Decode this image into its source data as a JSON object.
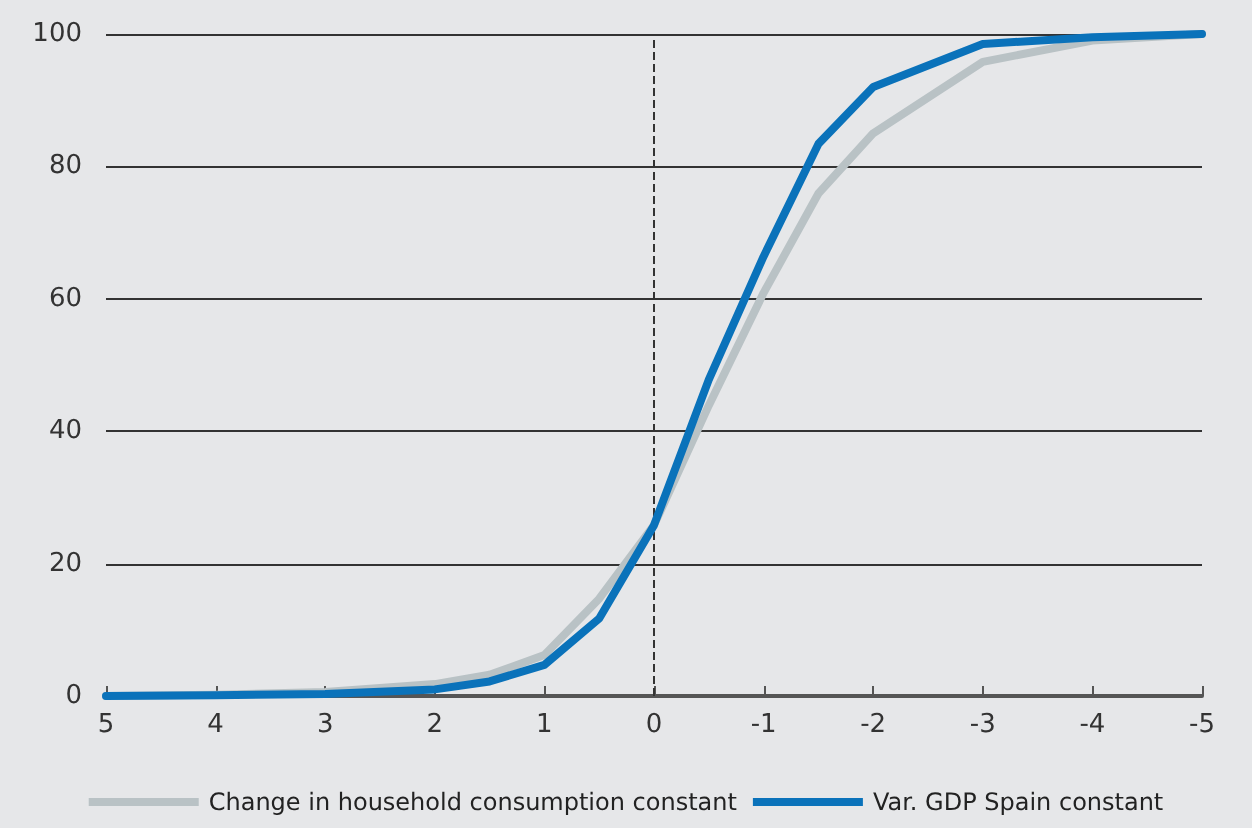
{
  "chart_data": {
    "type": "line",
    "x": [
      5,
      4,
      3,
      2,
      1.5,
      1,
      0.5,
      0,
      -0.5,
      -1,
      -1.5,
      -2,
      -3,
      -4,
      -5
    ],
    "series": [
      {
        "name": "Change in household consumption constant",
        "color": "#b9c2c5",
        "values": [
          0,
          0.2,
          0.6,
          1.8,
          3.2,
          6.2,
          14.7,
          25.8,
          43.9,
          60.9,
          75.9,
          85,
          95.8,
          99,
          100
        ]
      },
      {
        "name": "Var. GDP Spain constant",
        "color": "#0a72ba",
        "values": [
          0,
          0.1,
          0.3,
          1,
          2.2,
          4.7,
          11.7,
          25.8,
          47.8,
          66.4,
          83.4,
          92,
          98.5,
          99.5,
          100
        ]
      }
    ],
    "xlim": [
      5,
      -5
    ],
    "xticks": [
      5,
      4,
      3,
      2,
      1,
      0,
      -1,
      -2,
      -3,
      -4,
      -5
    ],
    "ylim": [
      0,
      100
    ],
    "yticks": [
      0,
      20,
      40,
      60,
      80,
      100
    ],
    "grid": "y",
    "legend": "bottom",
    "marker": "none",
    "line_style": "solid",
    "ref_lines": [
      {
        "axis": "x",
        "value": 0,
        "color": "#333333",
        "line_style": "dashed"
      }
    ]
  }
}
